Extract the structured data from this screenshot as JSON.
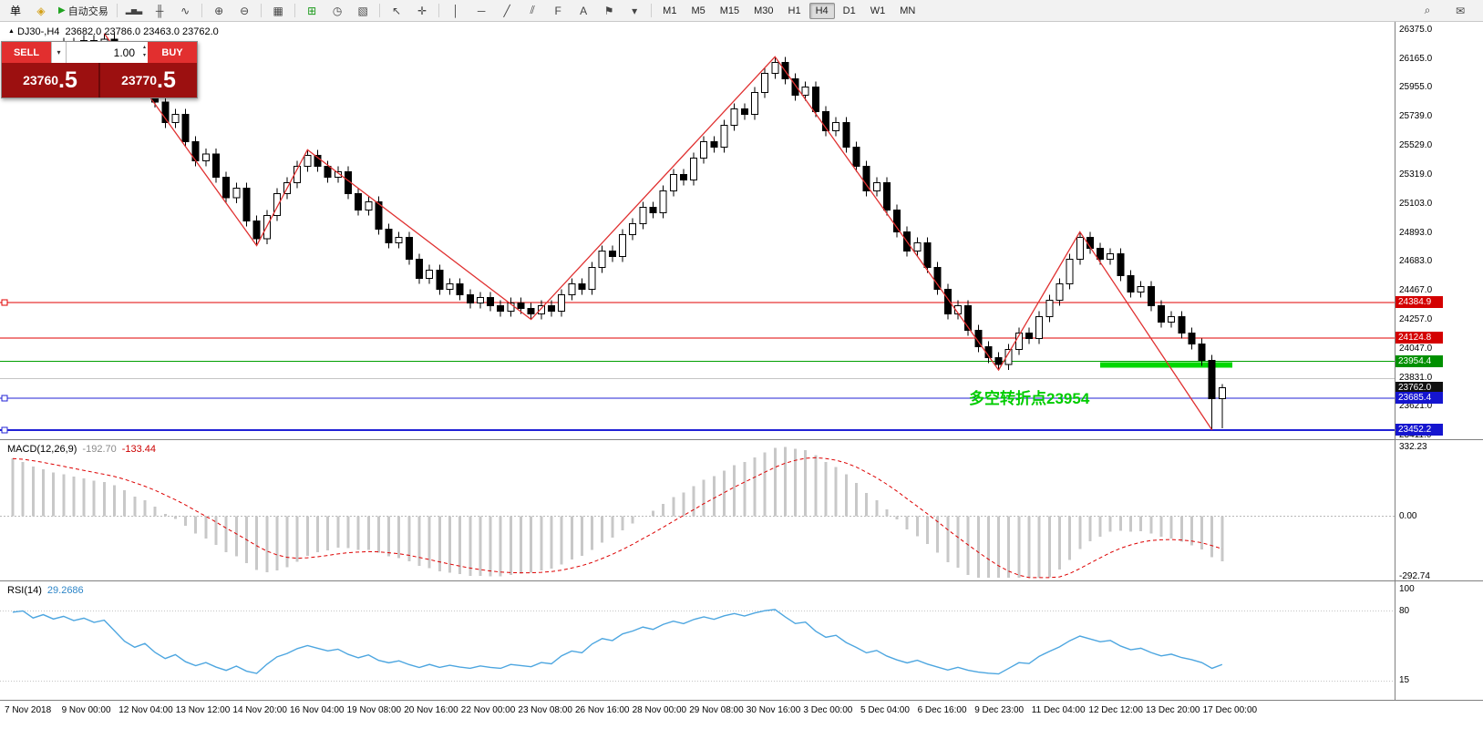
{
  "toolbar": {
    "new_order_label": "单",
    "sound_glyph": "◈",
    "autotrade_glyph": "▶",
    "autotrade_label": "自动交易",
    "icon_groups": [
      {
        "name": "chart-types",
        "items": [
          {
            "name": "bar-chart-icon",
            "glyph": "▂▅▃"
          },
          {
            "name": "candlestick-icon",
            "glyph": "╫"
          },
          {
            "name": "line-chart-icon",
            "glyph": "∿"
          }
        ]
      },
      {
        "name": "zoom",
        "items": [
          {
            "name": "zoom-in-icon",
            "glyph": "⊕"
          },
          {
            "name": "zoom-out-icon",
            "glyph": "⊖"
          }
        ]
      },
      {
        "name": "windows",
        "items": [
          {
            "name": "tile-windows-icon",
            "glyph": "▦"
          }
        ]
      },
      {
        "name": "chart-tools",
        "items": [
          {
            "name": "indicators-icon",
            "glyph": "⊞",
            "color": "#1a9a1a"
          },
          {
            "name": "periods-icon",
            "glyph": "◷"
          },
          {
            "name": "template-icon",
            "glyph": "▧"
          }
        ]
      },
      {
        "name": "pointer",
        "items": [
          {
            "name": "cursor-icon",
            "glyph": "↖"
          },
          {
            "name": "crosshair-icon",
            "glyph": "✛"
          }
        ]
      },
      {
        "name": "draw",
        "items": [
          {
            "name": "vertical-line-icon",
            "glyph": "│"
          },
          {
            "name": "horizontal-line-icon",
            "glyph": "─"
          },
          {
            "name": "trendline-icon",
            "glyph": "╱"
          },
          {
            "name": "channel-icon",
            "glyph": "⫽"
          },
          {
            "name": "fibonacci-icon",
            "glyph": "F"
          },
          {
            "name": "text-icon",
            "glyph": "A"
          },
          {
            "name": "label-icon",
            "glyph": "⚑"
          },
          {
            "name": "shapes-icon",
            "glyph": "▾"
          }
        ]
      }
    ],
    "timeframes": [
      {
        "label": "M1",
        "active": false
      },
      {
        "label": "M5",
        "active": false
      },
      {
        "label": "M15",
        "active": false
      },
      {
        "label": "M30",
        "active": false
      },
      {
        "label": "H1",
        "active": false
      },
      {
        "label": "H4",
        "active": true
      },
      {
        "label": "D1",
        "active": false
      },
      {
        "label": "W1",
        "active": false
      },
      {
        "label": "MN",
        "active": false
      }
    ],
    "right_items": [
      {
        "name": "search-icon",
        "glyph": "⌕"
      },
      {
        "name": "chat-icon",
        "glyph": "✉"
      }
    ]
  },
  "chart_header": {
    "marker": "▲",
    "symbol_period": "DJ30-,H4",
    "ohlc": "23682.0 23786.0 23463.0 23762.0"
  },
  "one_click": {
    "sell_label": "SELL",
    "buy_label": "BUY",
    "volume": "1.00",
    "caret": "▾",
    "spin_up": "▴",
    "spin_down": "▾",
    "sell_price_main": "23760",
    "sell_price_big": ".5",
    "buy_price_main": "23770",
    "buy_price_big": ".5"
  },
  "annotation": {
    "text": "多空转折点23954",
    "color": "#00cc00"
  },
  "price_axis": {
    "ticks": [
      {
        "label": "26375.0",
        "price": 26375
      },
      {
        "label": "26165.0",
        "price": 26165
      },
      {
        "label": "25955.0",
        "price": 25955
      },
      {
        "label": "25739.0",
        "price": 25739
      },
      {
        "label": "25529.0",
        "price": 25529
      },
      {
        "label": "25319.0",
        "price": 25319
      },
      {
        "label": "25103.0",
        "price": 25103
      },
      {
        "label": "24893.0",
        "price": 24893
      },
      {
        "label": "24683.0",
        "price": 24683
      },
      {
        "label": "24467.0",
        "price": 24467
      },
      {
        "label": "24257.0",
        "price": 24257
      },
      {
        "label": "24047.0",
        "price": 24047
      },
      {
        "label": "23831.0",
        "price": 23831
      },
      {
        "label": "23621.0",
        "price": 23621
      },
      {
        "label": "23411.0",
        "price": 23411
      }
    ],
    "tags": [
      {
        "label": "24384.9",
        "price": 24384.9,
        "color": "#d40000"
      },
      {
        "label": "24124.8",
        "price": 24124.8,
        "color": "#d40000"
      },
      {
        "label": "23954.4",
        "price": 23954.4,
        "color": "#009000"
      },
      {
        "label": "23762.0",
        "price": 23762.0,
        "color": "#111111"
      },
      {
        "label": "23685.4",
        "price": 23685.4,
        "color": "#1515cf"
      },
      {
        "label": "23452.2",
        "price": 23452.2,
        "color": "#1515cf"
      }
    ]
  },
  "macd": {
    "header_name": "MACD(12,26,9)",
    "value_main": "-192.70",
    "value_signal": "-133.44",
    "axis_labels": [
      {
        "label": "332.23",
        "v": 332.23
      },
      {
        "label": "0.00",
        "v": 0
      },
      {
        "label": "-292.74",
        "v": -292.74
      }
    ]
  },
  "rsi": {
    "header_name": "RSI(14)",
    "value": "29.2686",
    "levels": [
      80,
      15
    ],
    "axis_labels": [
      {
        "label": "100",
        "v": 100
      },
      {
        "label": "80",
        "v": 80
      },
      {
        "label": "15",
        "v": 15
      }
    ]
  },
  "time_axis": {
    "labels": [
      "7 Nov 2018",
      "9 Nov 00:00",
      "12 Nov 04:00",
      "13 Nov 12:00",
      "14 Nov 20:00",
      "16 Nov 04:00",
      "19 Nov 08:00",
      "20 Nov 16:00",
      "22 Nov 00:00",
      "23 Nov 08:00",
      "26 Nov 16:00",
      "28 Nov 00:00",
      "29 Nov 08:00",
      "30 Nov 16:00",
      "3 Dec 00:00",
      "5 Dec 04:00",
      "6 Dec 16:00",
      "9 Dec 23:00",
      "11 Dec 04:00",
      "12 Dec 12:00",
      "13 Dec 20:00",
      "17 Dec 00:00"
    ]
  },
  "chart_data": {
    "type": "candlestick",
    "symbol": "DJ30-",
    "timeframe": "H4",
    "ylim": [
      23411,
      26375
    ],
    "current_bar_ohlc": [
      23682.0,
      23786.0,
      23463.0,
      23762.0
    ],
    "bid": 23762.0,
    "sell_quote": 23760.5,
    "buy_quote": 23770.5,
    "macd_current": [
      -192.7,
      -133.44
    ],
    "rsi_current": 29.2686,
    "ohlc": [
      [
        26150,
        26220,
        26110,
        26180
      ],
      [
        26180,
        26260,
        26140,
        26220
      ],
      [
        26220,
        26260,
        26120,
        26160
      ],
      [
        26160,
        26290,
        26120,
        26250
      ],
      [
        26250,
        26290,
        26170,
        26210
      ],
      [
        26210,
        26320,
        26170,
        26280
      ],
      [
        26280,
        26320,
        26200,
        26240
      ],
      [
        26240,
        26340,
        26200,
        26300
      ],
      [
        26300,
        26340,
        26220,
        26260
      ],
      [
        26260,
        26350,
        26220,
        26310
      ],
      [
        26310,
        26350,
        26160,
        26200
      ],
      [
        26200,
        26240,
        26020,
        26060
      ],
      [
        26060,
        26100,
        25920,
        25960
      ],
      [
        25960,
        26060,
        25920,
        26020
      ],
      [
        26020,
        26060,
        25810,
        25850
      ],
      [
        25850,
        25890,
        25660,
        25700
      ],
      [
        25700,
        25800,
        25660,
        25760
      ],
      [
        25760,
        25800,
        25520,
        25560
      ],
      [
        25560,
        25600,
        25380,
        25420
      ],
      [
        25420,
        25510,
        25380,
        25470
      ],
      [
        25470,
        25510,
        25260,
        25300
      ],
      [
        25300,
        25340,
        25110,
        25150
      ],
      [
        25150,
        25260,
        25110,
        25220
      ],
      [
        25220,
        25260,
        24940,
        24980
      ],
      [
        24980,
        25020,
        24800,
        24850
      ],
      [
        24850,
        25060,
        24810,
        25020
      ],
      [
        25020,
        25220,
        24980,
        25180
      ],
      [
        25180,
        25300,
        25140,
        25260
      ],
      [
        25260,
        25420,
        25220,
        25380
      ],
      [
        25380,
        25500,
        25340,
        25460
      ],
      [
        25460,
        25500,
        25340,
        25380
      ],
      [
        25380,
        25420,
        25260,
        25300
      ],
      [
        25300,
        25380,
        25260,
        25340
      ],
      [
        25340,
        25380,
        25140,
        25180
      ],
      [
        25180,
        25220,
        25020,
        25060
      ],
      [
        25060,
        25160,
        25020,
        25120
      ],
      [
        25120,
        25160,
        24880,
        24920
      ],
      [
        24920,
        24960,
        24780,
        24820
      ],
      [
        24820,
        24900,
        24780,
        24860
      ],
      [
        24860,
        24900,
        24660,
        24700
      ],
      [
        24700,
        24740,
        24520,
        24560
      ],
      [
        24560,
        24660,
        24520,
        24620
      ],
      [
        24620,
        24660,
        24440,
        24480
      ],
      [
        24480,
        24560,
        24440,
        24520
      ],
      [
        24520,
        24560,
        24400,
        24440
      ],
      [
        24440,
        24480,
        24340,
        24380
      ],
      [
        24380,
        24460,
        24340,
        24420
      ],
      [
        24420,
        24460,
        24320,
        24360
      ],
      [
        24360,
        24400,
        24280,
        24320
      ],
      [
        24320,
        24420,
        24280,
        24380
      ],
      [
        24380,
        24420,
        24300,
        24340
      ],
      [
        24340,
        24380,
        24260,
        24300
      ],
      [
        24300,
        24400,
        24260,
        24360
      ],
      [
        24360,
        24400,
        24280,
        24320
      ],
      [
        24320,
        24480,
        24280,
        24440
      ],
      [
        24440,
        24560,
        24400,
        24520
      ],
      [
        24520,
        24560,
        24440,
        24480
      ],
      [
        24480,
        24680,
        24440,
        24640
      ],
      [
        24640,
        24800,
        24600,
        24760
      ],
      [
        24760,
        24800,
        24680,
        24720
      ],
      [
        24720,
        24920,
        24680,
        24880
      ],
      [
        24880,
        25000,
        24840,
        24960
      ],
      [
        24960,
        25120,
        24920,
        25080
      ],
      [
        25080,
        25120,
        25000,
        25040
      ],
      [
        25040,
        25240,
        25000,
        25200
      ],
      [
        25200,
        25360,
        25160,
        25320
      ],
      [
        25320,
        25360,
        25240,
        25280
      ],
      [
        25280,
        25480,
        25240,
        25440
      ],
      [
        25440,
        25600,
        25400,
        25560
      ],
      [
        25560,
        25600,
        25480,
        25520
      ],
      [
        25520,
        25720,
        25480,
        25680
      ],
      [
        25680,
        25840,
        25640,
        25800
      ],
      [
        25800,
        25840,
        25720,
        25760
      ],
      [
        25760,
        25960,
        25720,
        25920
      ],
      [
        25920,
        26100,
        25880,
        26060
      ],
      [
        26060,
        26180,
        26020,
        26140
      ],
      [
        26140,
        26180,
        25980,
        26020
      ],
      [
        26020,
        26060,
        25860,
        25900
      ],
      [
        25900,
        26000,
        25860,
        25960
      ],
      [
        25960,
        26000,
        25740,
        25780
      ],
      [
        25780,
        25820,
        25600,
        25640
      ],
      [
        25640,
        25740,
        25600,
        25700
      ],
      [
        25700,
        25740,
        25480,
        25520
      ],
      [
        25520,
        25560,
        25340,
        25380
      ],
      [
        25380,
        25420,
        25160,
        25200
      ],
      [
        25200,
        25300,
        25160,
        25260
      ],
      [
        25260,
        25300,
        25020,
        25060
      ],
      [
        25060,
        25100,
        24860,
        24900
      ],
      [
        24900,
        24940,
        24720,
        24760
      ],
      [
        24760,
        24860,
        24720,
        24820
      ],
      [
        24820,
        24860,
        24600,
        24640
      ],
      [
        24640,
        24680,
        24440,
        24480
      ],
      [
        24480,
        24520,
        24260,
        24300
      ],
      [
        24300,
        24400,
        24260,
        24360
      ],
      [
        24360,
        24400,
        24140,
        24180
      ],
      [
        24180,
        24220,
        24020,
        24060
      ],
      [
        24060,
        24100,
        23940,
        23980
      ],
      [
        23980,
        24020,
        23890,
        23930
      ],
      [
        23930,
        24080,
        23890,
        24040
      ],
      [
        24040,
        24200,
        24000,
        24160
      ],
      [
        24160,
        24200,
        24080,
        24120
      ],
      [
        24120,
        24320,
        24080,
        24280
      ],
      [
        24280,
        24440,
        24240,
        24400
      ],
      [
        24400,
        24560,
        24360,
        24520
      ],
      [
        24520,
        24740,
        24480,
        24700
      ],
      [
        24700,
        24900,
        24660,
        24860
      ],
      [
        24860,
        24900,
        24740,
        24780
      ],
      [
        24780,
        24820,
        24660,
        24700
      ],
      [
        24700,
        24780,
        24660,
        24740
      ],
      [
        24740,
        24780,
        24540,
        24580
      ],
      [
        24580,
        24620,
        24420,
        24460
      ],
      [
        24460,
        24540,
        24420,
        24500
      ],
      [
        24500,
        24540,
        24320,
        24360
      ],
      [
        24360,
        24400,
        24200,
        24240
      ],
      [
        24240,
        24320,
        24200,
        24280
      ],
      [
        24280,
        24320,
        24120,
        24160
      ],
      [
        24160,
        24200,
        24040,
        24080
      ],
      [
        24080,
        24120,
        23920,
        23960
      ],
      [
        23960,
        24000,
        23452,
        23682
      ],
      [
        23682,
        23786,
        23463,
        23762
      ]
    ],
    "zigzag": [
      [
        9,
        26350
      ],
      [
        24,
        24800
      ],
      [
        29,
        25500
      ],
      [
        51,
        24260
      ],
      [
        75,
        26180
      ],
      [
        97,
        23890
      ],
      [
        105,
        24900
      ],
      [
        118,
        23452
      ]
    ],
    "levels": [
      {
        "price": 24384.9,
        "color": "#e00000",
        "w": 1,
        "handle": true
      },
      {
        "price": 24124.8,
        "color": "#e00000",
        "w": 1,
        "handle": false
      },
      {
        "price": 23954.4,
        "color": "#00a000",
        "w": 1,
        "handle": false
      },
      {
        "price": 23826.0,
        "color": "#c4c4c4",
        "w": 1,
        "handle": false
      },
      {
        "price": 23685.4,
        "color": "#2121d6",
        "w": 1,
        "handle": true
      },
      {
        "price": 23452.2,
        "color": "#2121d6",
        "w": 2,
        "handle": true
      }
    ],
    "green_segment": {
      "price": 23954.4,
      "start_bar": 107,
      "end_bar": 120,
      "color": "#00d800"
    }
  }
}
